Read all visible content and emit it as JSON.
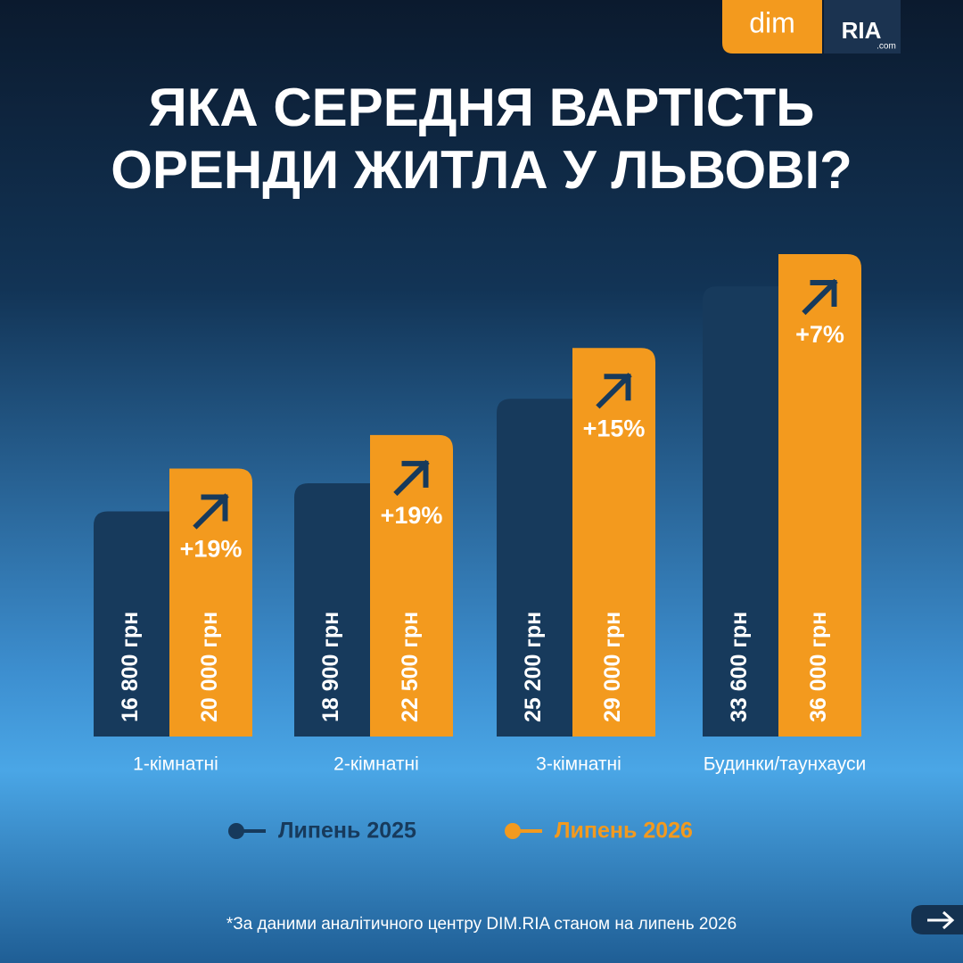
{
  "logo": {
    "left": "dim",
    "right": "RIA",
    "right_sub": ".com"
  },
  "chart_data": {
    "type": "bar",
    "title_lines": [
      "ЯКА СЕРЕДНЯ ВАРТІСТЬ",
      "ОРЕНДИ ЖИТЛА У ЛЬВОВІ?"
    ],
    "categories": [
      "1-кімнатні",
      "2-кімнатні",
      "3-кімнатні",
      "Будинки/таунхауси"
    ],
    "series": [
      {
        "name": "Липень 2025",
        "color": "#173a5c",
        "values": [
          16800,
          18900,
          25200,
          33600
        ],
        "value_labels": [
          "16 800 грн",
          "18 900 грн",
          "25 200 грн",
          "33 600 грн"
        ]
      },
      {
        "name": "Липень 2026",
        "color": "#f39a1e",
        "values": [
          20000,
          22500,
          29000,
          36000
        ],
        "value_labels": [
          "20 000 грн",
          "22 500 грн",
          "29 000 грн",
          "36 000 грн"
        ]
      }
    ],
    "growth_labels": [
      "+19%",
      "+19%",
      "+15%",
      "+7%"
    ],
    "footnote": "*За даними аналітичного центру DIM.RIA станом на липень 2026"
  }
}
